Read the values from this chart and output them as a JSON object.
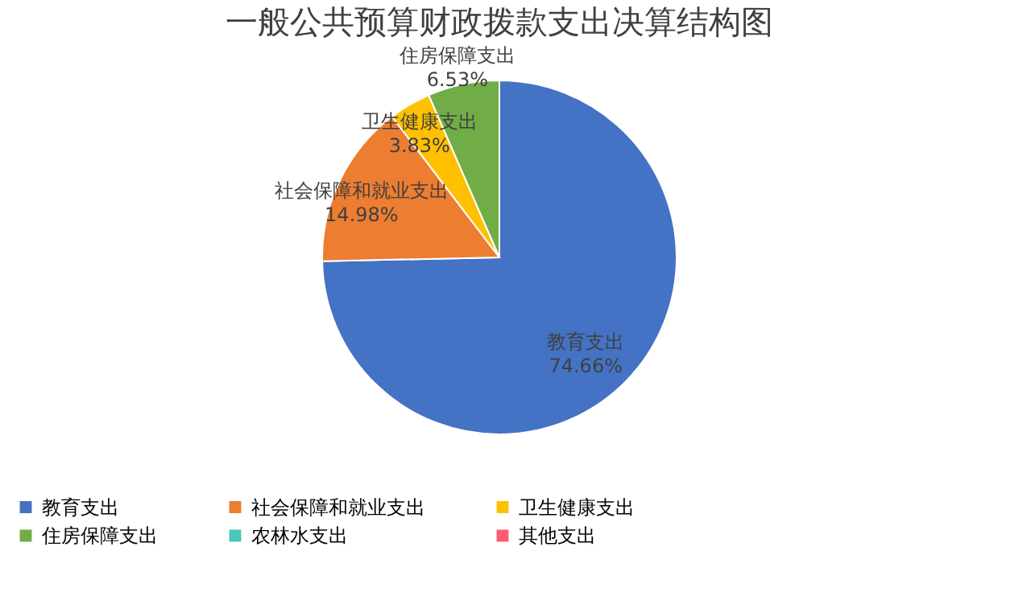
{
  "chart_data": {
    "type": "pie",
    "title": "一般公共预算财政拨款支出决算结构图",
    "categories": [
      "教育支出",
      "社会保障和就业支出",
      "卫生健康支出",
      "住房保障支出",
      "农林水支出",
      "其他支出"
    ],
    "values": [
      74.66,
      14.98,
      3.83,
      6.53,
      0,
      0
    ],
    "value_labels": [
      "74.66%",
      "14.98%",
      "3.83%",
      "6.53%",
      null,
      null
    ],
    "colors": [
      "#4472c4",
      "#ed7d31",
      "#ffc000",
      "#70ad47",
      "#4bc6b9",
      "#ff5b6e"
    ],
    "legend": "bottom"
  }
}
